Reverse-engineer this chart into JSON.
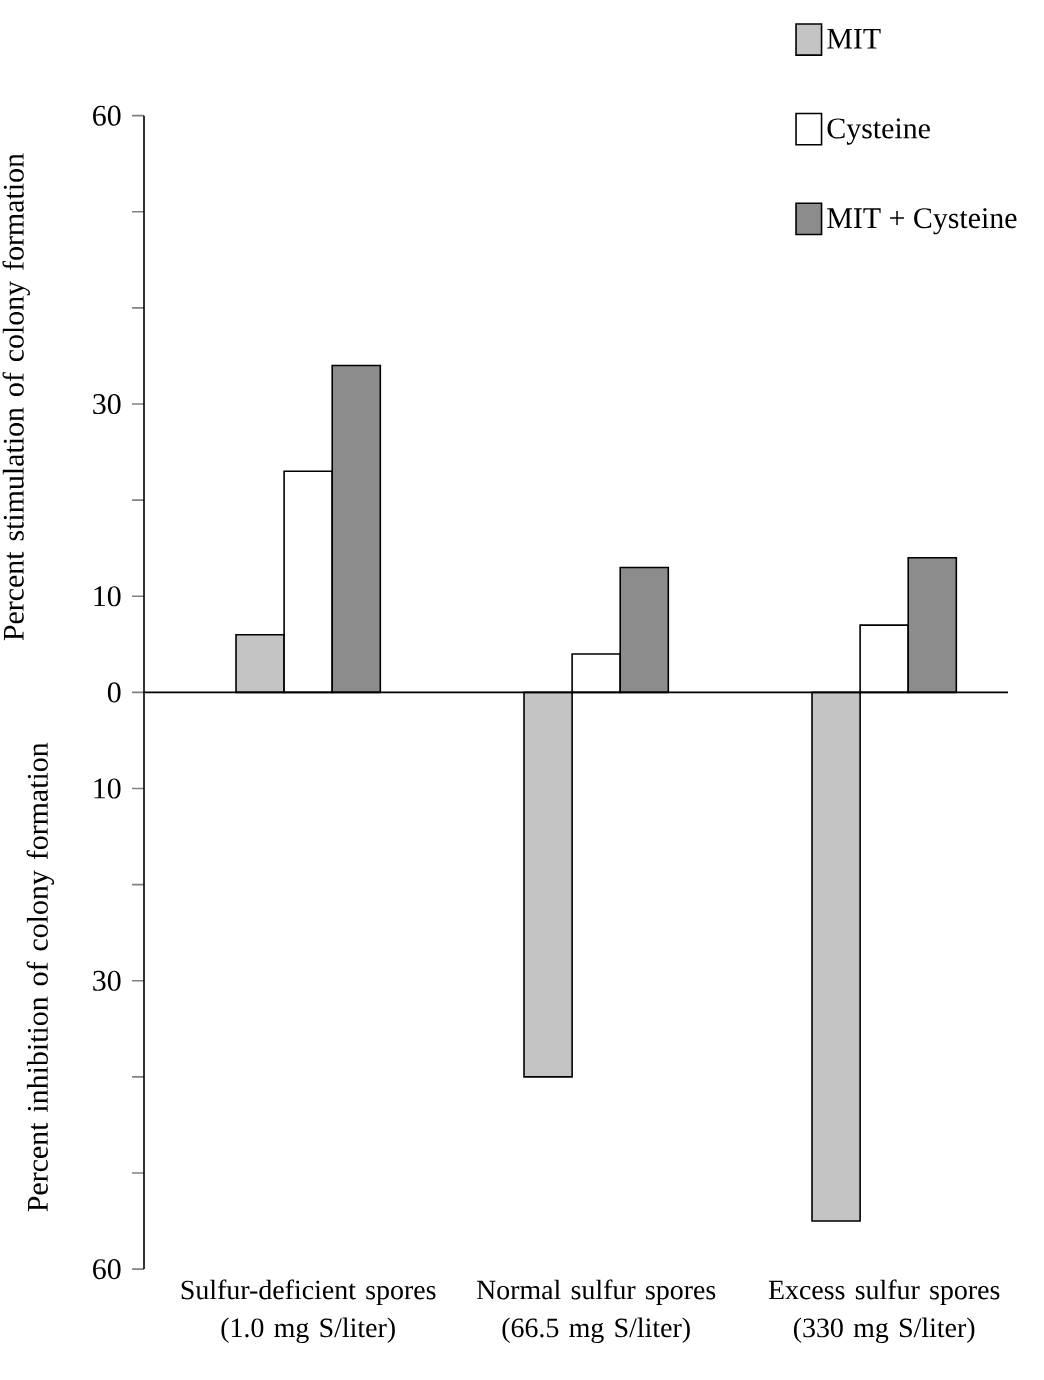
{
  "chart_data": {
    "type": "bar",
    "ylabel": "Percent stimulation of colony formation",
    "annotations": [
      "Percent inhibition of colony formation"
    ],
    "categories": [
      "Sulfur-deficient spores (1.0 mg S/liter)",
      "Normal sulfur spores (66.5 mg S/liter)",
      "Excess sulfur spores (330 mg S/liter)"
    ],
    "series": [
      {
        "name": "MIT",
        "color": "#c4c4c4",
        "values": [
          6,
          -40,
          -55
        ]
      },
      {
        "name": "Cysteine",
        "color": "#ffffff",
        "values": [
          23,
          4,
          7
        ]
      },
      {
        "name": "MIT + Cysteine",
        "color": "#8c8c8c",
        "values": [
          34,
          13,
          14
        ]
      }
    ],
    "ylim": [
      -60,
      60
    ],
    "yticks": [
      {
        "value": -60,
        "label": "60"
      },
      {
        "value": -50,
        "label": null
      },
      {
        "value": -40,
        "label": null
      },
      {
        "value": -30,
        "label": "30"
      },
      {
        "value": -20,
        "label": null
      },
      {
        "value": -10,
        "label": "10"
      },
      0,
      10,
      {
        "value": 20,
        "label": null
      },
      30,
      {
        "value": 40,
        "label": null
      },
      {
        "value": 50,
        "label": null
      },
      60
    ],
    "ref_lines": [
      {
        "axis": "y",
        "value": 0,
        "color": "#000000"
      }
    ],
    "grid": false,
    "legend": "top right"
  }
}
